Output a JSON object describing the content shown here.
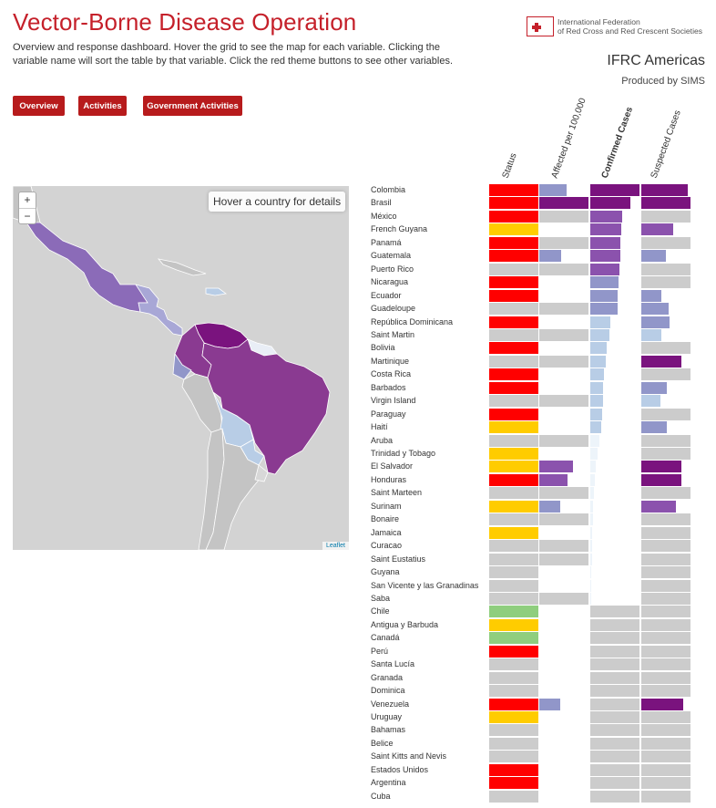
{
  "header": {
    "title": "Vector-Borne Disease Operation",
    "description": "Overview and response dashboard. Hover the grid to see the map for each variable. Clicking the variable name will sort the table by that variable. Click the red theme buttons to see other variables.",
    "org_name": "IFRC Americas",
    "produced_by": "Produced by SIMS",
    "logo_text": "International Federation\nof Red Cross and Red Crescent Societies"
  },
  "buttons": {
    "overview": "Overview",
    "activities": "Activities",
    "government": "Government Activities"
  },
  "map": {
    "zoom_in": "+",
    "zoom_out": "−",
    "hover_text": "Hover a country for details",
    "attribution": "Leaflet"
  },
  "columns": [
    "Status",
    "Affected per 100,000",
    "Confirmed Cases",
    "Suspected Cases"
  ],
  "colors": {
    "red": "#ff0000",
    "yellow": "#ffcc00",
    "green": "#8fce7e",
    "gray": "#cccccc",
    "purple_dark": "#7a137e",
    "purple_mid": "#8b52ad",
    "purple_light": "#9196c9",
    "blue_light": "#b8cde6",
    "blue_pale": "#d5e4f1",
    "blue_faint": "#edf4fa",
    "nodata": "#ffffff"
  },
  "rows": [
    {
      "name": "Colombia",
      "status": "red",
      "affected": {
        "c": "purple_light",
        "v": 0.55
      },
      "confirmed": {
        "c": "purple_dark",
        "v": 1.0
      },
      "suspected": {
        "c": "purple_dark",
        "v": 0.95
      }
    },
    {
      "name": "Brasil",
      "status": "red",
      "affected": {
        "c": "purple_dark",
        "v": 1.0
      },
      "confirmed": {
        "c": "purple_dark",
        "v": 0.82
      },
      "suspected": {
        "c": "purple_dark",
        "v": 1.0
      }
    },
    {
      "name": "México",
      "status": "red",
      "affected": {
        "c": "gray",
        "v": 1.0
      },
      "confirmed": {
        "c": "purple_mid",
        "v": 0.65
      },
      "suspected": {
        "c": "gray",
        "v": 1.0
      }
    },
    {
      "name": "French Guyana",
      "status": "yellow",
      "affected": {
        "c": "none",
        "v": 0
      },
      "confirmed": {
        "c": "purple_mid",
        "v": 0.63
      },
      "suspected": {
        "c": "purple_mid",
        "v": 0.65
      }
    },
    {
      "name": "Panamá",
      "status": "red",
      "affected": {
        "c": "gray",
        "v": 1.0
      },
      "confirmed": {
        "c": "purple_mid",
        "v": 0.62
      },
      "suspected": {
        "c": "gray",
        "v": 1.0
      }
    },
    {
      "name": "Guatemala",
      "status": "red",
      "affected": {
        "c": "purple_light",
        "v": 0.45
      },
      "confirmed": {
        "c": "purple_mid",
        "v": 0.61
      },
      "suspected": {
        "c": "purple_light",
        "v": 0.5
      }
    },
    {
      "name": "Puerto Rico",
      "status": "gray",
      "affected": {
        "c": "gray",
        "v": 1.0
      },
      "confirmed": {
        "c": "purple_mid",
        "v": 0.6
      },
      "suspected": {
        "c": "gray",
        "v": 1.0
      }
    },
    {
      "name": "Nicaragua",
      "status": "red",
      "affected": {
        "c": "none",
        "v": 0
      },
      "confirmed": {
        "c": "purple_light",
        "v": 0.58
      },
      "suspected": {
        "c": "gray",
        "v": 1.0
      }
    },
    {
      "name": "Ecuador",
      "status": "red",
      "affected": {
        "c": "none",
        "v": 0
      },
      "confirmed": {
        "c": "purple_light",
        "v": 0.55
      },
      "suspected": {
        "c": "purple_light",
        "v": 0.4
      }
    },
    {
      "name": "Guadeloupe",
      "status": "gray",
      "affected": {
        "c": "gray",
        "v": 1.0
      },
      "confirmed": {
        "c": "purple_light",
        "v": 0.55
      },
      "suspected": {
        "c": "purple_light",
        "v": 0.55
      }
    },
    {
      "name": "República Dominicana",
      "status": "red",
      "affected": {
        "c": "none",
        "v": 0
      },
      "confirmed": {
        "c": "blue_light",
        "v": 0.4
      },
      "suspected": {
        "c": "purple_light",
        "v": 0.57
      }
    },
    {
      "name": "Saint Martin",
      "status": "gray",
      "affected": {
        "c": "gray",
        "v": 1.0
      },
      "confirmed": {
        "c": "blue_light",
        "v": 0.38
      },
      "suspected": {
        "c": "blue_light",
        "v": 0.4
      }
    },
    {
      "name": "Bolivia",
      "status": "red",
      "affected": {
        "c": "none",
        "v": 0
      },
      "confirmed": {
        "c": "blue_light",
        "v": 0.34
      },
      "suspected": {
        "c": "gray",
        "v": 1.0
      }
    },
    {
      "name": "Martinique",
      "status": "gray",
      "affected": {
        "c": "gray",
        "v": 1.0
      },
      "confirmed": {
        "c": "blue_light",
        "v": 0.32
      },
      "suspected": {
        "c": "purple_dark",
        "v": 0.82
      }
    },
    {
      "name": "Costa Rica",
      "status": "red",
      "affected": {
        "c": "none",
        "v": 0
      },
      "confirmed": {
        "c": "blue_light",
        "v": 0.28
      },
      "suspected": {
        "c": "gray",
        "v": 1.0
      }
    },
    {
      "name": "Barbados",
      "status": "red",
      "affected": {
        "c": "none",
        "v": 0
      },
      "confirmed": {
        "c": "blue_light",
        "v": 0.26
      },
      "suspected": {
        "c": "purple_light",
        "v": 0.52
      }
    },
    {
      "name": "Virgin Island",
      "status": "gray",
      "affected": {
        "c": "gray",
        "v": 1.0
      },
      "confirmed": {
        "c": "blue_light",
        "v": 0.25
      },
      "suspected": {
        "c": "blue_light",
        "v": 0.38
      }
    },
    {
      "name": "Paraguay",
      "status": "red",
      "affected": {
        "c": "none",
        "v": 0
      },
      "confirmed": {
        "c": "blue_light",
        "v": 0.24
      },
      "suspected": {
        "c": "gray",
        "v": 1.0
      }
    },
    {
      "name": "Haití",
      "status": "yellow",
      "affected": {
        "c": "none",
        "v": 0
      },
      "confirmed": {
        "c": "blue_light",
        "v": 0.22
      },
      "suspected": {
        "c": "purple_light",
        "v": 0.52
      }
    },
    {
      "name": "Aruba",
      "status": "gray",
      "affected": {
        "c": "gray",
        "v": 1.0
      },
      "confirmed": {
        "c": "blue_faint",
        "v": 0.18
      },
      "suspected": {
        "c": "gray",
        "v": 1.0
      }
    },
    {
      "name": "Trinidad y Tobago",
      "status": "yellow",
      "affected": {
        "c": "none",
        "v": 0
      },
      "confirmed": {
        "c": "blue_faint",
        "v": 0.15
      },
      "suspected": {
        "c": "gray",
        "v": 1.0
      }
    },
    {
      "name": "El Salvador",
      "status": "yellow",
      "affected": {
        "c": "purple_mid",
        "v": 0.68
      },
      "confirmed": {
        "c": "blue_faint",
        "v": 0.12
      },
      "suspected": {
        "c": "purple_dark",
        "v": 0.82
      }
    },
    {
      "name": "Honduras",
      "status": "red",
      "affected": {
        "c": "purple_mid",
        "v": 0.58
      },
      "confirmed": {
        "c": "blue_faint",
        "v": 0.1
      },
      "suspected": {
        "c": "purple_dark",
        "v": 0.82
      }
    },
    {
      "name": "Saint Marteen",
      "status": "gray",
      "affected": {
        "c": "gray",
        "v": 1.0
      },
      "confirmed": {
        "c": "blue_faint",
        "v": 0.08
      },
      "suspected": {
        "c": "gray",
        "v": 1.0
      }
    },
    {
      "name": "Surinam",
      "status": "yellow",
      "affected": {
        "c": "purple_light",
        "v": 0.42
      },
      "confirmed": {
        "c": "blue_faint",
        "v": 0.06
      },
      "suspected": {
        "c": "purple_mid",
        "v": 0.7
      }
    },
    {
      "name": "Bonaire",
      "status": "gray",
      "affected": {
        "c": "gray",
        "v": 1.0
      },
      "confirmed": {
        "c": "blue_faint",
        "v": 0.05
      },
      "suspected": {
        "c": "gray",
        "v": 1.0
      }
    },
    {
      "name": "Jamaica",
      "status": "yellow",
      "affected": {
        "c": "none",
        "v": 0
      },
      "confirmed": {
        "c": "blue_faint",
        "v": 0.04
      },
      "suspected": {
        "c": "gray",
        "v": 1.0
      }
    },
    {
      "name": "Curacao",
      "status": "gray",
      "affected": {
        "c": "gray",
        "v": 1.0
      },
      "confirmed": {
        "c": "blue_faint",
        "v": 0.03
      },
      "suspected": {
        "c": "gray",
        "v": 1.0
      }
    },
    {
      "name": "Saint Eustatius",
      "status": "gray",
      "affected": {
        "c": "gray",
        "v": 1.0
      },
      "confirmed": {
        "c": "blue_faint",
        "v": 0.03
      },
      "suspected": {
        "c": "gray",
        "v": 1.0
      }
    },
    {
      "name": "Guyana",
      "status": "gray",
      "affected": {
        "c": "none",
        "v": 0
      },
      "confirmed": {
        "c": "blue_faint",
        "v": 0.02
      },
      "suspected": {
        "c": "gray",
        "v": 1.0
      }
    },
    {
      "name": "San Vicente y las Granadinas",
      "status": "gray",
      "affected": {
        "c": "none",
        "v": 0
      },
      "confirmed": {
        "c": "blue_faint",
        "v": 0.02
      },
      "suspected": {
        "c": "gray",
        "v": 1.0
      }
    },
    {
      "name": "Saba",
      "status": "gray",
      "affected": {
        "c": "gray",
        "v": 1.0
      },
      "confirmed": {
        "c": "blue_faint",
        "v": 0.02
      },
      "suspected": {
        "c": "gray",
        "v": 1.0
      }
    },
    {
      "name": "Chile",
      "status": "green",
      "affected": {
        "c": "none",
        "v": 0
      },
      "confirmed": {
        "c": "gray",
        "v": 1.0
      },
      "suspected": {
        "c": "gray",
        "v": 1.0
      }
    },
    {
      "name": "Antigua y Barbuda",
      "status": "yellow",
      "affected": {
        "c": "none",
        "v": 0
      },
      "confirmed": {
        "c": "gray",
        "v": 1.0
      },
      "suspected": {
        "c": "gray",
        "v": 1.0
      }
    },
    {
      "name": "Canadá",
      "status": "green",
      "affected": {
        "c": "none",
        "v": 0
      },
      "confirmed": {
        "c": "gray",
        "v": 1.0
      },
      "suspected": {
        "c": "gray",
        "v": 1.0
      }
    },
    {
      "name": "Perú",
      "status": "red",
      "affected": {
        "c": "none",
        "v": 0
      },
      "confirmed": {
        "c": "gray",
        "v": 1.0
      },
      "suspected": {
        "c": "gray",
        "v": 1.0
      }
    },
    {
      "name": "Santa Lucía",
      "status": "gray",
      "affected": {
        "c": "none",
        "v": 0
      },
      "confirmed": {
        "c": "gray",
        "v": 1.0
      },
      "suspected": {
        "c": "gray",
        "v": 1.0
      }
    },
    {
      "name": "Granada",
      "status": "gray",
      "affected": {
        "c": "none",
        "v": 0
      },
      "confirmed": {
        "c": "gray",
        "v": 1.0
      },
      "suspected": {
        "c": "gray",
        "v": 1.0
      }
    },
    {
      "name": "Dominica",
      "status": "gray",
      "affected": {
        "c": "none",
        "v": 0
      },
      "confirmed": {
        "c": "gray",
        "v": 1.0
      },
      "suspected": {
        "c": "gray",
        "v": 1.0
      }
    },
    {
      "name": "Venezuela",
      "status": "red",
      "affected": {
        "c": "purple_light",
        "v": 0.42
      },
      "confirmed": {
        "c": "gray",
        "v": 1.0
      },
      "suspected": {
        "c": "purple_dark",
        "v": 0.86
      }
    },
    {
      "name": "Uruguay",
      "status": "yellow",
      "affected": {
        "c": "none",
        "v": 0
      },
      "confirmed": {
        "c": "gray",
        "v": 1.0
      },
      "suspected": {
        "c": "gray",
        "v": 1.0
      }
    },
    {
      "name": "Bahamas",
      "status": "gray",
      "affected": {
        "c": "none",
        "v": 0
      },
      "confirmed": {
        "c": "gray",
        "v": 1.0
      },
      "suspected": {
        "c": "gray",
        "v": 1.0
      }
    },
    {
      "name": "Belice",
      "status": "gray",
      "affected": {
        "c": "none",
        "v": 0
      },
      "confirmed": {
        "c": "gray",
        "v": 1.0
      },
      "suspected": {
        "c": "gray",
        "v": 1.0
      }
    },
    {
      "name": "Saint Kitts and Nevis",
      "status": "gray",
      "affected": {
        "c": "none",
        "v": 0
      },
      "confirmed": {
        "c": "gray",
        "v": 1.0
      },
      "suspected": {
        "c": "gray",
        "v": 1.0
      }
    },
    {
      "name": "Estados Unidos",
      "status": "red",
      "affected": {
        "c": "none",
        "v": 0
      },
      "confirmed": {
        "c": "gray",
        "v": 1.0
      },
      "suspected": {
        "c": "gray",
        "v": 1.0
      }
    },
    {
      "name": "Argentina",
      "status": "red",
      "affected": {
        "c": "none",
        "v": 0
      },
      "confirmed": {
        "c": "gray",
        "v": 1.0
      },
      "suspected": {
        "c": "gray",
        "v": 1.0
      }
    },
    {
      "name": "Cuba",
      "status": "gray",
      "affected": {
        "c": "none",
        "v": 0
      },
      "confirmed": {
        "c": "gray",
        "v": 1.0
      },
      "suspected": {
        "c": "gray",
        "v": 1.0
      }
    }
  ]
}
